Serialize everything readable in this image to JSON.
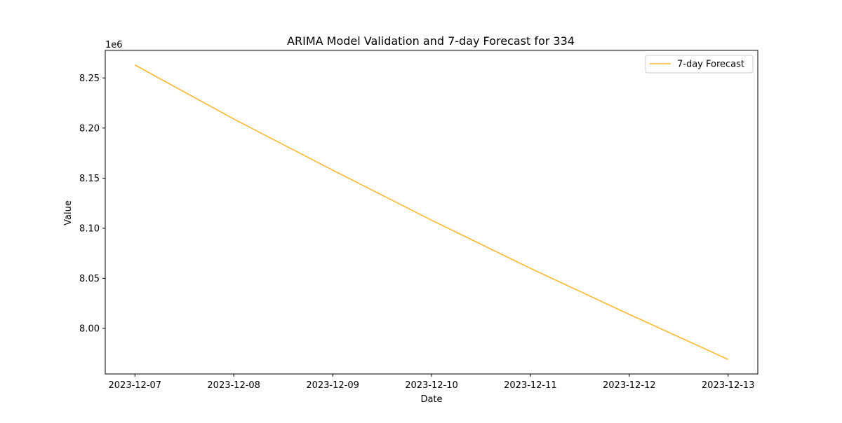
{
  "chart_data": {
    "type": "line",
    "title": "ARIMA Model Validation and 7-day Forecast for 334",
    "xlabel": "Date",
    "ylabel": "Value",
    "y_offset_text": "1e6",
    "x": [
      "2023-12-07",
      "2023-12-08",
      "2023-12-09",
      "2023-12-10",
      "2023-12-11",
      "2023-12-12",
      "2023-12-13"
    ],
    "x_tick_labels": [
      "2023-12-07",
      "2023-12-08",
      "2023-12-09",
      "2023-12-10",
      "2023-12-11",
      "2023-12-12",
      "2023-12-13"
    ],
    "y_ticks": [
      8.0,
      8.05,
      8.1,
      8.15,
      8.2,
      8.25
    ],
    "y_tick_labels": [
      "8.00",
      "8.05",
      "8.10",
      "8.15",
      "8.20",
      "8.25"
    ],
    "ylim": [
      7.9545,
      8.2775
    ],
    "y_scale": 1000000,
    "grid": false,
    "legend_position": "upper right",
    "series": [
      {
        "name": "7-day Forecast",
        "color": "#ffb732",
        "values": [
          8.263,
          8.209,
          8.158,
          8.108,
          8.06,
          8.014,
          7.969
        ]
      }
    ]
  }
}
